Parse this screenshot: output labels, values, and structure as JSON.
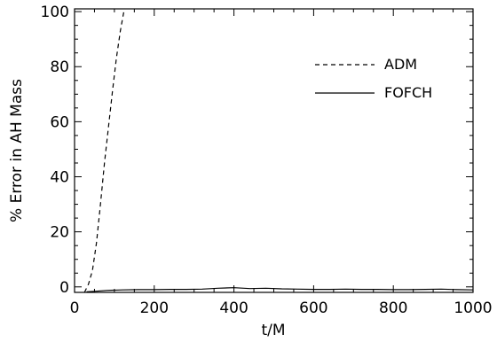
{
  "chart_data": {
    "type": "line",
    "xlabel": "t/M",
    "ylabel": "% Error in AH Mass",
    "xlim": [
      0,
      1000
    ],
    "ylim": [
      -2,
      101
    ],
    "x_ticks": [
      0,
      200,
      400,
      600,
      800,
      1000
    ],
    "y_ticks": [
      0,
      20,
      40,
      60,
      80,
      100
    ],
    "x_tick_labels": [
      "0",
      "200",
      "400",
      "600",
      "800",
      "1000"
    ],
    "y_tick_labels": [
      "0",
      "20",
      "40",
      "60",
      "80",
      "100"
    ],
    "grid": false,
    "legend": "top-right",
    "series": [
      {
        "name": "ADM",
        "dash": "dashed",
        "color": "#000000",
        "x": [
          25,
          35,
          45,
          55,
          65,
          75,
          85,
          95,
          105,
          115,
          125
        ],
        "y": [
          -2,
          1,
          6,
          16,
          30,
          45,
          58,
          71,
          83,
          93,
          101
        ]
      },
      {
        "name": "FOFCH",
        "dash": "solid",
        "color": "#000000",
        "x": [
          30,
          50,
          80,
          120,
          160,
          200,
          240,
          280,
          320,
          360,
          400,
          440,
          480,
          520,
          560,
          600,
          640,
          680,
          720,
          760,
          800,
          840,
          880,
          920,
          960,
          1000
        ],
        "y": [
          -1.8,
          -1.6,
          -1.3,
          -1.1,
          -1.0,
          -1.0,
          -0.9,
          -0.9,
          -0.8,
          -0.5,
          -0.3,
          -0.6,
          -0.5,
          -0.7,
          -0.8,
          -0.9,
          -0.9,
          -0.8,
          -0.9,
          -0.9,
          -1.0,
          -1.0,
          -0.9,
          -0.8,
          -1.0,
          -1.1
        ]
      }
    ]
  }
}
